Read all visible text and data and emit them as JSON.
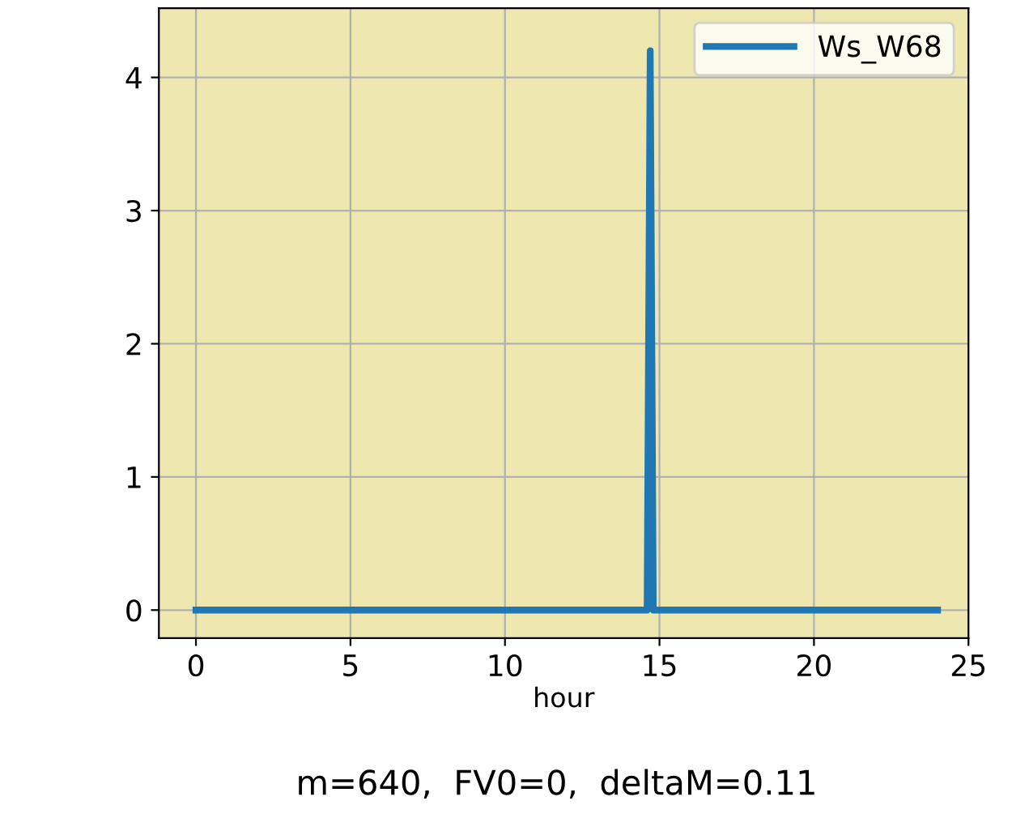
{
  "chart_data": {
    "type": "line",
    "xlabel": "hour",
    "annotations": [
      "m=640,  FV0=0,  deltaM=0.11"
    ],
    "series": [
      {
        "name": "Ws_W68",
        "color": "#1f77b4",
        "x": [
          0,
          14.6,
          14.7,
          14.8,
          24
        ],
        "values": [
          0,
          0,
          4.2,
          0,
          0
        ]
      }
    ],
    "xlim": [
      -1.2,
      25
    ],
    "ylim": [
      -0.21,
      4.52
    ],
    "xticks": [
      0,
      5,
      10,
      15,
      20,
      25
    ],
    "yticks": [
      0,
      1,
      2,
      3,
      4
    ],
    "grid": true,
    "legend": "top right",
    "marker": "none",
    "line_style": "solid"
  }
}
